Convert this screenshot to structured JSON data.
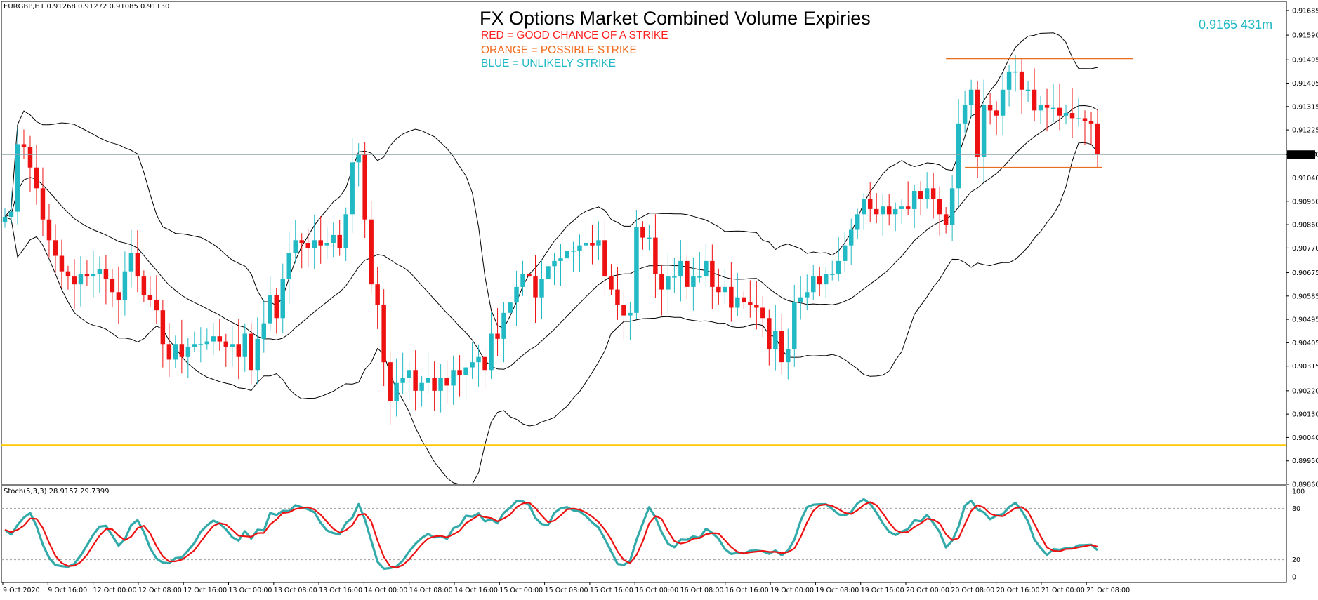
{
  "header": {
    "symbol_line": "EURGBP,H1  0.91268 0.91272 0.91085 0.91130",
    "title": "FX Options Market Combined Volume Expiries",
    "legend_red": "RED = GOOD CHANCE OF A STRIKE",
    "legend_orange": "ORANGE = POSSIBLE STRIKE",
    "legend_blue": "BLUE = UNLIKELY STRIKE",
    "expiry_note": "0.9165 431m",
    "stoch_label": "Stoch(5,3,3) 28.9157 29.7399"
  },
  "colors": {
    "bull": "#20b9c4",
    "bear": "#ee1111",
    "stoch_main": "#33aaaa",
    "stoch_signal": "#ee1111",
    "expiry_yellow": "#ffc800",
    "range_orange": "#e86d1f",
    "last_price_line": "#8ca3a6",
    "blue_note": "#20b9c4",
    "red_legend": "#ff2020",
    "orange_legend": "#f26b1d"
  },
  "chart_data": [
    {
      "type": "candlestick",
      "symbol": "EURGBP",
      "timeframe": "H1",
      "ylim": [
        0.8986,
        0.9172
      ],
      "y_ticks": [
        "0.91685",
        "0.91590",
        "0.91495",
        "0.91405",
        "0.91315",
        "0.91225",
        "0.91130",
        "0.91040",
        "0.90950",
        "0.90860",
        "0.90770",
        "0.90675",
        "0.90585",
        "0.90495",
        "0.90405",
        "0.90315",
        "0.90220",
        "0.90130",
        "0.90040",
        "0.89950",
        "0.89860"
      ],
      "x_ticks": [
        "9 Oct 2020",
        "9 Oct 16:00",
        "12 Oct 00:00",
        "12 Oct 08:00",
        "12 Oct 16:00",
        "13 Oct 00:00",
        "13 Oct 08:00",
        "13 Oct 16:00",
        "14 Oct 00:00",
        "14 Oct 08:00",
        "14 Oct 16:00",
        "15 Oct 00:00",
        "15 Oct 08:00",
        "15 Oct 16:00",
        "16 Oct 00:00",
        "16 Oct 08:00",
        "16 Oct 16:00",
        "19 Oct 00:00",
        "19 Oct 08:00",
        "19 Oct 16:00",
        "20 Oct 00:00",
        "20 Oct 08:00",
        "20 Oct 16:00",
        "21 Oct 00:00",
        "21 Oct 08:00"
      ],
      "last_price": "0.91130",
      "last_price_value": 0.9113,
      "closes": [
        0.9089,
        0.9091,
        0.9117,
        0.9116,
        0.9108,
        0.91,
        0.9088,
        0.908,
        0.9074,
        0.9068,
        0.9066,
        0.9063,
        0.9067,
        0.9066,
        0.9067,
        0.9069,
        0.9065,
        0.906,
        0.9057,
        0.9068,
        0.9075,
        0.9066,
        0.9059,
        0.9057,
        0.9053,
        0.904,
        0.9034,
        0.904,
        0.9035,
        0.9039,
        0.904,
        0.904,
        0.9041,
        0.9043,
        0.9041,
        0.9039,
        0.904,
        0.9035,
        0.9044,
        0.903,
        0.9042,
        0.9048,
        0.9059,
        0.905,
        0.9065,
        0.9075,
        0.908,
        0.9079,
        0.9077,
        0.908,
        0.9078,
        0.9079,
        0.9082,
        0.9077,
        0.909,
        0.911,
        0.9113,
        0.9088,
        0.9063,
        0.9055,
        0.9033,
        0.9018,
        0.9025,
        0.9027,
        0.903,
        0.9022,
        0.9025,
        0.9027,
        0.9022,
        0.9027,
        0.9024,
        0.903,
        0.9028,
        0.9031,
        0.9033,
        0.9035,
        0.903,
        0.9044,
        0.9042,
        0.9052,
        0.9056,
        0.9062,
        0.9067,
        0.9066,
        0.9058,
        0.9065,
        0.907,
        0.9072,
        0.9073,
        0.9076,
        0.9076,
        0.9078,
        0.9079,
        0.9078,
        0.908,
        0.9066,
        0.9061,
        0.9055,
        0.9051,
        0.9052,
        0.9085,
        0.9081,
        0.9081,
        0.9067,
        0.9061,
        0.9066,
        0.9066,
        0.9072,
        0.9062,
        0.9066,
        0.9066,
        0.9072,
        0.9062,
        0.906,
        0.9062,
        0.9054,
        0.9058,
        0.9056,
        0.9055,
        0.9054,
        0.905,
        0.9038,
        0.9045,
        0.9033,
        0.9038,
        0.9056,
        0.9058,
        0.906,
        0.9066,
        0.9063,
        0.9067,
        0.9067,
        0.9072,
        0.9078,
        0.9084,
        0.909,
        0.9096,
        0.9092,
        0.909,
        0.9093,
        0.909,
        0.9092,
        0.9093,
        0.9092,
        0.9099,
        0.9096,
        0.91,
        0.9096,
        0.909,
        0.9086,
        0.91,
        0.9125,
        0.9132,
        0.9138,
        0.9112,
        0.9132,
        0.913,
        0.9128,
        0.9138,
        0.9145,
        0.9145,
        0.9138,
        0.9138,
        0.913,
        0.9132,
        0.9131,
        0.9131,
        0.9128,
        0.9129,
        0.9127,
        0.9127,
        0.9126,
        0.9125,
        0.9113
      ],
      "opens_source": "previous close",
      "stochastic": {
        "name": "Stoch(5,3,3)",
        "main_last": 28.9157,
        "signal_last": 29.7399,
        "ylim": [
          0,
          100
        ],
        "y_ticks": [
          "100",
          "80",
          "20",
          "0"
        ],
        "levels": [
          80,
          20
        ]
      }
    }
  ]
}
